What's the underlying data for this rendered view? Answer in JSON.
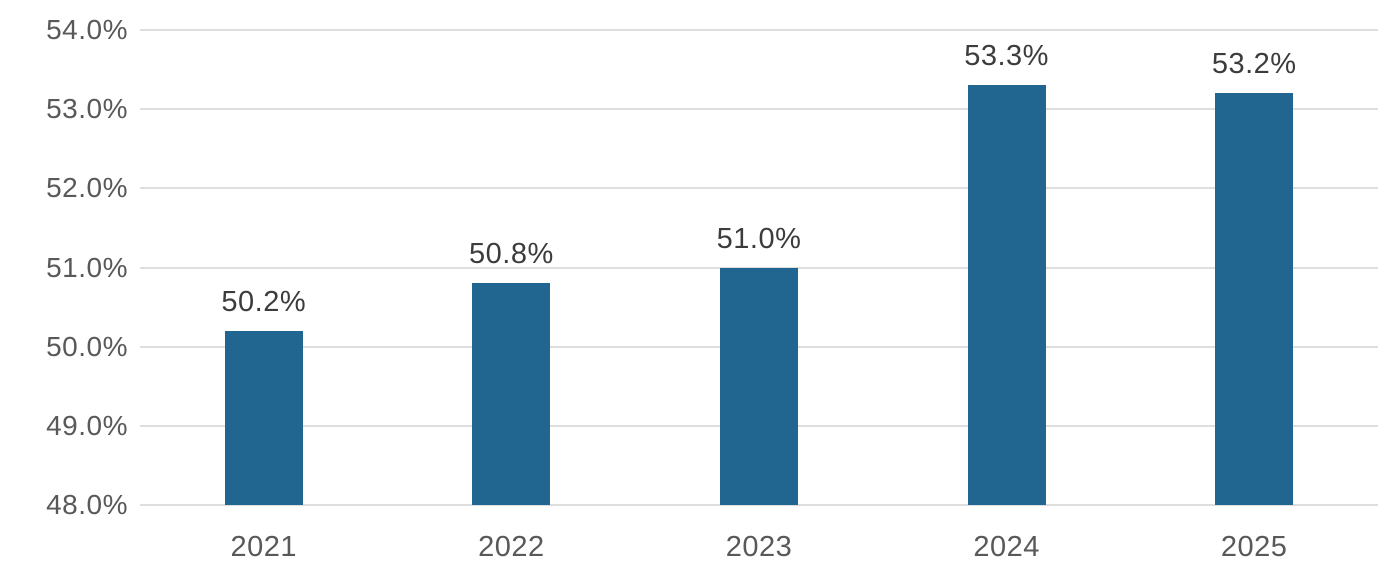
{
  "chart_data": {
    "type": "bar",
    "categories": [
      "2021",
      "2022",
      "2023",
      "2024",
      "2025"
    ],
    "values": [
      50.2,
      50.8,
      51.0,
      53.3,
      53.2
    ],
    "data_labels": [
      "50.2%",
      "50.8%",
      "51.0%",
      "53.3%",
      "53.2%"
    ],
    "title": "",
    "xlabel": "",
    "ylabel": "",
    "ylim": [
      48,
      54
    ],
    "ytick_values": [
      54,
      53,
      52,
      51,
      50,
      49,
      48
    ],
    "ytick_labels": [
      "54.0%",
      "53.0%",
      "52.0%",
      "51.0%",
      "50.0%",
      "49.0%",
      "48.0%"
    ],
    "grid": true,
    "legend": false,
    "colors": {
      "bar": "#216690",
      "gridline": "#dedede",
      "axis_text": "#58595b",
      "data_label_text": "#3c3c3e"
    }
  }
}
